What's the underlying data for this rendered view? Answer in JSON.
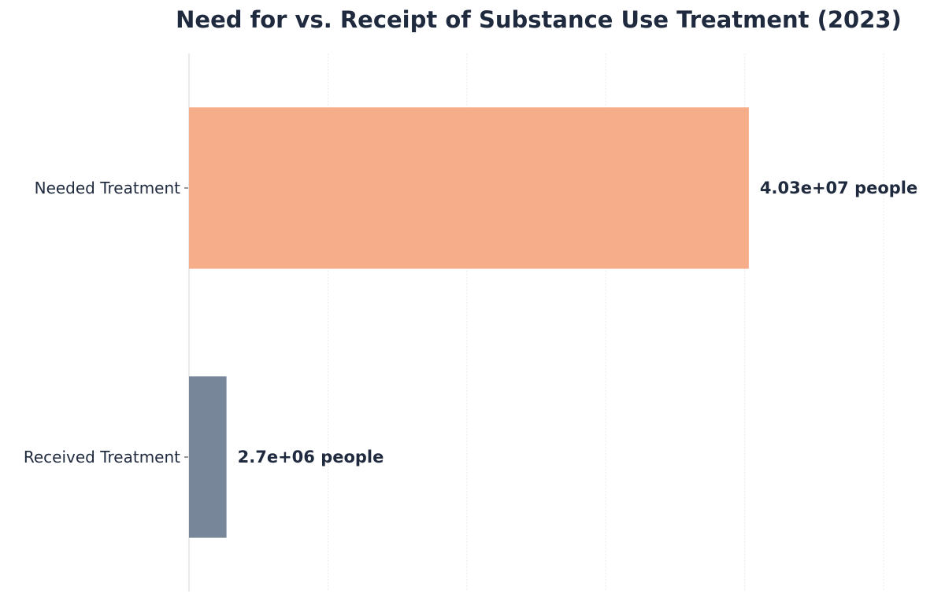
{
  "chart_data": {
    "type": "bar",
    "orientation": "horizontal",
    "title": "Need for vs. Receipt of Substance Use Treatment (2023)",
    "xlabel": "",
    "ylabel": "",
    "categories": [
      "Needed Treatment",
      "Received Treatment"
    ],
    "values": [
      40300000,
      2700000
    ],
    "value_labels": [
      "4.03e+07 people",
      "2.7e+06 people"
    ],
    "colors": [
      "#f5ae89",
      "#788699"
    ],
    "xlim": [
      0,
      50000000
    ],
    "x_gridlines": [
      0,
      10000000,
      20000000,
      30000000,
      40000000,
      50000000
    ],
    "grid": true,
    "x_tick_labels_visible": false
  }
}
